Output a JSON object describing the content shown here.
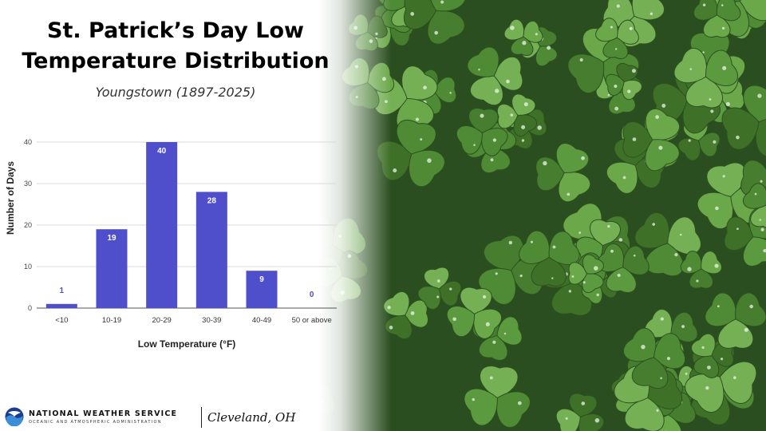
{
  "title_line1": "St. Patrick’s Day Low",
  "title_line2": "Temperature Distribution",
  "subtitle": "Youngstown (1897-2025)",
  "chart_data": {
    "type": "bar",
    "categories": [
      "<10",
      "10-19",
      "20-29",
      "30-39",
      "40-49",
      "50 or above"
    ],
    "values": [
      1,
      19,
      40,
      28,
      9,
      0
    ],
    "data_labels": [
      "1",
      "19",
      "40",
      "28",
      "9",
      "0"
    ],
    "xlabel": "Low Temperature (°F)",
    "ylabel": "Number of Days",
    "ylim": [
      0,
      40
    ],
    "yticks": [
      0,
      10,
      20,
      30,
      40
    ],
    "grid": true,
    "bar_color": "#4f4fcc",
    "label_color_inside": "#ffffff",
    "label_color_outside": "#4f4fcc"
  },
  "footer": {
    "org_name": "NATIONAL WEATHER SERVICE",
    "org_sub": "OCEANIC AND ATMOSPHERIC ADMINISTRATION",
    "office": "Cleveland, OH",
    "logo_icon": "noaa-logo-icon"
  },
  "photo_icon": "clover-photo"
}
